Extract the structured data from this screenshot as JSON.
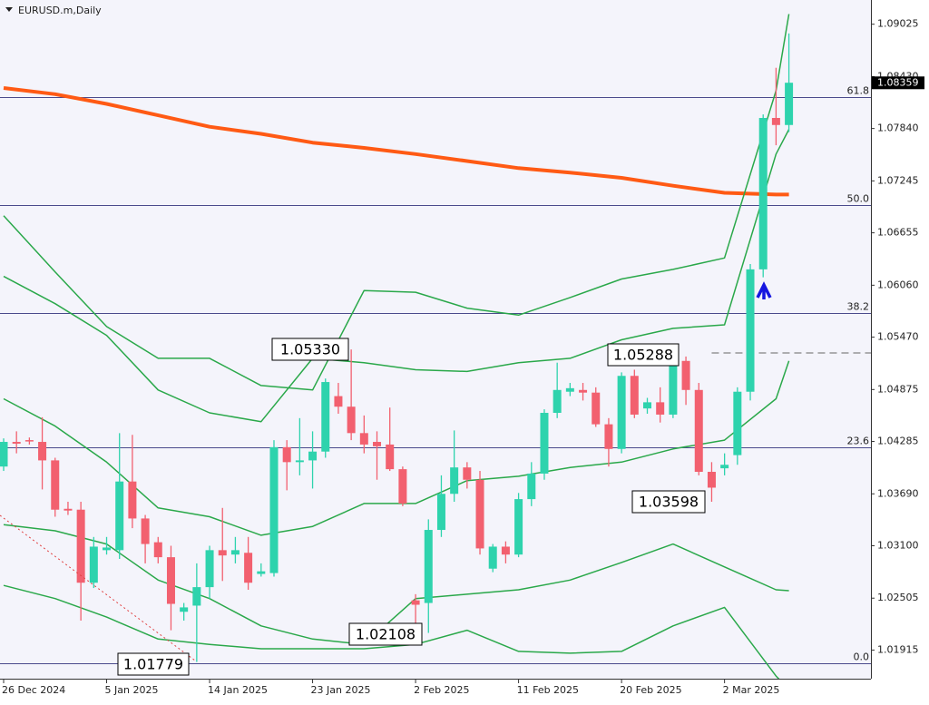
{
  "chart_data": {
    "type": "candlestick",
    "title": "EURUSD.m,Daily",
    "categories": [
      "26 Dec 2024",
      null,
      null,
      null,
      null,
      null,
      null,
      null,
      "5 Jan 2025",
      null,
      null,
      null,
      null,
      null,
      null,
      null,
      "14 Jan 2025",
      null,
      null,
      null,
      null,
      null,
      null,
      null,
      "23 Jan 2025",
      null,
      null,
      null,
      null,
      null,
      null,
      null,
      "2 Feb 2025",
      null,
      null,
      null,
      null,
      null,
      null,
      null,
      "11 Feb 2025",
      null,
      null,
      null,
      null,
      null,
      null,
      null,
      "20 Feb 2025",
      null,
      null,
      null,
      null,
      null,
      null,
      null,
      "2 Mar 2025",
      null,
      null,
      null,
      null,
      null
    ],
    "open": [
      1.04,
      1.0428,
      1.043,
      1.0428,
      1.0407,
      1.0352,
      1.0351,
      1.0268,
      1.0305,
      1.0305,
      1.0383,
      1.0341,
      1.0314,
      1.0297,
      1.0235,
      1.0242,
      1.0263,
      1.0305,
      1.03,
      1.0302,
      1.0278,
      1.0279,
      1.0422,
      1.0405,
      1.0407,
      1.0417,
      1.048,
      1.0468,
      1.0438,
      1.0428,
      1.0425,
      1.0397,
      1.0248,
      1.0245,
      1.0328,
      1.0369,
      1.0399,
      1.0385,
      1.0284,
      1.0309,
      1.03,
      1.0363,
      1.0392,
      1.0461,
      1.0485,
      1.0487,
      1.0484,
      1.0448,
      1.042,
      1.0503,
      1.0466,
      1.0473,
      1.0459,
      1.052,
      1.0487,
      1.0394,
      1.0398,
      1.0413,
      1.0485,
      1.0624,
      1.0796,
      1.0788
    ],
    "high": [
      1.0432,
      1.044,
      1.0433,
      1.0456,
      1.041,
      1.036,
      1.036,
      1.032,
      1.032,
      1.0438,
      1.0436,
      1.0345,
      1.032,
      1.031,
      1.0245,
      1.029,
      1.031,
      1.0353,
      1.032,
      1.032,
      1.029,
      1.043,
      1.043,
      1.0455,
      1.044,
      1.05,
      1.0495,
      1.0533,
      1.0458,
      1.044,
      1.0467,
      1.04,
      1.0255,
      1.034,
      1.039,
      1.0441,
      1.0405,
      1.0395,
      1.0312,
      1.0315,
      1.037,
      1.0405,
      1.0465,
      1.0518,
      1.0495,
      1.0495,
      1.049,
      1.0455,
      1.0507,
      1.051,
      1.0478,
      1.049,
      1.0529,
      1.0525,
      1.0495,
      1.0405,
      1.0415,
      1.049,
      1.063,
      1.08,
      1.0853,
      1.0892
    ],
    "low": [
      1.0395,
      1.0415,
      1.0425,
      1.0374,
      1.0343,
      1.0345,
      1.0225,
      1.0262,
      1.03,
      1.0295,
      1.033,
      1.029,
      1.029,
      1.0214,
      1.0225,
      1.0178,
      1.025,
      1.027,
      1.029,
      1.026,
      1.0275,
      1.0275,
      1.0373,
      1.039,
      1.0375,
      1.041,
      1.046,
      1.043,
      1.0415,
      1.0385,
      1.0395,
      1.0355,
      1.022,
      1.0211,
      1.032,
      1.036,
      1.0375,
      1.03,
      1.028,
      1.029,
      1.0297,
      1.0355,
      1.0385,
      1.0455,
      1.048,
      1.0475,
      1.0445,
      1.04,
      1.0415,
      1.0455,
      1.046,
      1.045,
      1.0455,
      1.047,
      1.039,
      1.036,
      1.039,
      1.0402,
      1.0475,
      1.0615,
      1.0765,
      1.078
    ],
    "close": [
      1.0428,
      1.0426,
      1.0429,
      1.0407,
      1.0351,
      1.035,
      1.0268,
      1.0309,
      1.0308,
      1.0383,
      1.0341,
      1.0312,
      1.0297,
      1.0244,
      1.024,
      1.0263,
      1.0305,
      1.0299,
      1.0305,
      1.0268,
      1.0281,
      1.0422,
      1.0405,
      1.0407,
      1.0417,
      1.0496,
      1.0468,
      1.0438,
      1.0425,
      1.0423,
      1.0397,
      1.0358,
      1.0243,
      1.0328,
      1.0369,
      1.0399,
      1.0385,
      1.0307,
      1.0309,
      1.03,
      1.0363,
      1.0392,
      1.0461,
      1.0487,
      1.0489,
      1.0484,
      1.0448,
      1.042,
      1.0503,
      1.0459,
      1.0473,
      1.0459,
      1.0523,
      1.0487,
      1.0394,
      1.0376,
      1.0402,
      1.0485,
      1.0624,
      1.0796,
      1.0788,
      1.0836
    ],
    "up_color": "#2ed3ad",
    "down_color": "#f2606f",
    "lines": [
      {
        "color": "#ff5a14",
        "width": 4,
        "x": [
          0,
          4,
          8,
          12,
          16,
          20,
          24,
          28,
          32,
          36,
          40,
          44,
          48,
          52,
          56,
          60,
          61
        ],
        "values": [
          1.083,
          1.0823,
          1.0812,
          1.0799,
          1.0786,
          1.0778,
          1.0768,
          1.0762,
          1.0755,
          1.0747,
          1.0739,
          1.0734,
          1.0728,
          1.0719,
          1.0711,
          1.0709,
          1.0709
        ]
      },
      {
        "color": "#2aa84a",
        "width": 1.5,
        "x": [
          0,
          4,
          8,
          12,
          16,
          20,
          24,
          28,
          32,
          36,
          40,
          44,
          48,
          52,
          56,
          60,
          61
        ],
        "values": [
          1.0685,
          1.0621,
          1.0559,
          1.0523,
          1.0523,
          1.0492,
          1.0487,
          1.06,
          1.0598,
          1.058,
          1.0572,
          1.0592,
          1.0613,
          1.0624,
          1.0637,
          1.0827,
          1.0914
        ]
      },
      {
        "color": "#2aa84a",
        "width": 1.5,
        "x": [
          0,
          4,
          8,
          12,
          16,
          20,
          24,
          28,
          32,
          36,
          40,
          44,
          48,
          52,
          56,
          60,
          61
        ],
        "values": [
          1.0616,
          1.0585,
          1.0549,
          1.0487,
          1.0461,
          1.0451,
          1.0523,
          1.0518,
          1.051,
          1.0508,
          1.0518,
          1.0523,
          1.0544,
          1.0557,
          1.0561,
          1.0755,
          1.0783
        ]
      },
      {
        "color": "#2aa84a",
        "width": 1.5,
        "x": [
          0,
          4,
          8,
          12,
          16,
          20,
          24,
          28,
          32,
          36,
          40,
          44,
          48,
          52,
          56,
          60,
          61
        ],
        "values": [
          1.0477,
          1.0446,
          1.0405,
          1.0353,
          1.0343,
          1.0322,
          1.0332,
          1.0358,
          1.0358,
          1.0384,
          1.0389,
          1.0399,
          1.0405,
          1.042,
          1.043,
          1.0477,
          1.052
        ]
      },
      {
        "color": "#2aa84a",
        "width": 1.5,
        "x": [
          0,
          4,
          8,
          12,
          16,
          20,
          24,
          28,
          32,
          36,
          40,
          44,
          48,
          52,
          56,
          60,
          61
        ],
        "values": [
          1.0334,
          1.0327,
          1.0312,
          1.0271,
          1.025,
          1.0219,
          1.0204,
          1.0198,
          1.025,
          1.0255,
          1.026,
          1.0271,
          1.0291,
          1.0312,
          1.0286,
          1.026,
          1.0259
        ]
      },
      {
        "color": "#2aa84a",
        "width": 1.5,
        "x": [
          0,
          4,
          8,
          12,
          16,
          20,
          24,
          28,
          32,
          36,
          40,
          44,
          48,
          52,
          56,
          60,
          61
        ],
        "values": [
          1.0265,
          1.025,
          1.0229,
          1.0204,
          1.0198,
          1.0193,
          1.0193,
          1.0193,
          1.0198,
          1.0214,
          1.019,
          1.0188,
          1.019,
          1.0219,
          1.024,
          1.0162,
          1.0147
        ]
      }
    ],
    "levels": [
      {
        "label": "61.8",
        "value": 1.082
      },
      {
        "label": "50.0",
        "value": 1.0697
      },
      {
        "label": "38.2",
        "value": 1.0574
      },
      {
        "label": "23.6",
        "value": 1.0422
      },
      {
        "label": "0.0",
        "value": 1.0177
      }
    ],
    "level_color": "#4a4a8c",
    "dashed_level": {
      "start": 55,
      "value": 1.0529
    },
    "annotations": [
      {
        "text": "1.05330"
      },
      {
        "text": "1.05288"
      },
      {
        "text": "1.03598"
      },
      {
        "text": "1.02108"
      },
      {
        "text": "1.01779"
      }
    ],
    "current_price": 1.08359,
    "ylim": [
      1.0159,
      1.093
    ],
    "yticks": [
      1.09025,
      {
        "value": 1.0843,
        "label": "1.08430"
      },
      {
        "value": 1.0784,
        "label": "1.07840"
      },
      1.07245,
      1.06655,
      {
        "value": 1.0606,
        "label": "1.06060"
      },
      {
        "value": 1.0547,
        "label": "1.05470"
      },
      1.04875,
      1.04285,
      {
        "value": 1.0369,
        "label": "1.03690"
      },
      {
        "value": 1.031,
        "label": "1.03100"
      },
      1.02505,
      1.01915
    ]
  }
}
